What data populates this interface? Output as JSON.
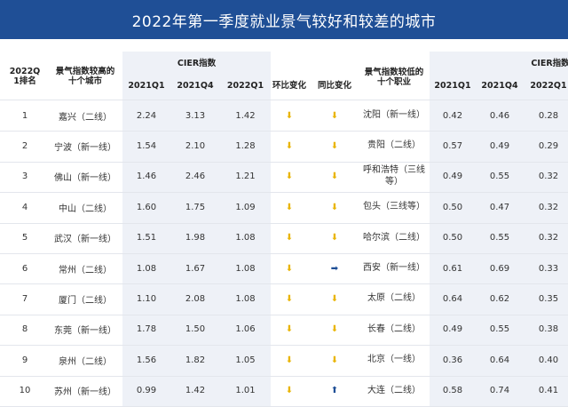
{
  "title": "2022年第一季度就业景气较好和较差的城市",
  "headers": {
    "rank": "2022Q\n1排名",
    "top_cities": "景气指数较高的\n十个城市",
    "cier_left": "CIER指数",
    "q1_2021": "2021Q1",
    "q4_2021": "2021Q4",
    "q1_2022": "2022Q1",
    "qoq": "环比变化",
    "yoy": "同比变化",
    "bottom_cities": "景气指数较低的\n十个职业",
    "cier_right": "CIER指数",
    "q1_2021_r": "2021Q1",
    "q4_2021_r": "2021Q4",
    "q1_2022_r": "2022Q1"
  },
  "rows": [
    {
      "rank": "1",
      "top": "嘉兴（二线）",
      "t1": "2.24",
      "t2": "3.13",
      "t3": "1.42",
      "qoq": "down",
      "yoy": "down",
      "bottom": "沈阳（新一线）",
      "b1": "0.42",
      "b2": "0.46",
      "b3": "0.28"
    },
    {
      "rank": "2",
      "top": "宁波（新一线）",
      "t1": "1.54",
      "t2": "2.10",
      "t3": "1.28",
      "qoq": "down",
      "yoy": "down",
      "bottom": "贵阳（二线）",
      "b1": "0.57",
      "b2": "0.49",
      "b3": "0.29"
    },
    {
      "rank": "3",
      "top": "佛山（新一线）",
      "t1": "1.46",
      "t2": "2.46",
      "t3": "1.21",
      "qoq": "down",
      "yoy": "down",
      "bottom": "呼和浩特（三线\n等）",
      "b1": "0.49",
      "b2": "0.55",
      "b3": "0.32"
    },
    {
      "rank": "4",
      "top": "中山（二线）",
      "t1": "1.60",
      "t2": "1.75",
      "t3": "1.09",
      "qoq": "down",
      "yoy": "down",
      "bottom": "包头（三线等）",
      "b1": "0.50",
      "b2": "0.47",
      "b3": "0.32"
    },
    {
      "rank": "5",
      "top": "武汉（新一线）",
      "t1": "1.51",
      "t2": "1.98",
      "t3": "1.08",
      "qoq": "down",
      "yoy": "down",
      "bottom": "哈尔滨（二线）",
      "b1": "0.50",
      "b2": "0.55",
      "b3": "0.32"
    },
    {
      "rank": "6",
      "top": "常州（二线）",
      "t1": "1.08",
      "t2": "1.67",
      "t3": "1.08",
      "qoq": "down",
      "yoy": "right",
      "bottom": "西安（新一线）",
      "b1": "0.61",
      "b2": "0.69",
      "b3": "0.33"
    },
    {
      "rank": "7",
      "top": "厦门（二线）",
      "t1": "1.10",
      "t2": "2.08",
      "t3": "1.08",
      "qoq": "down",
      "yoy": "down",
      "bottom": "太原（二线）",
      "b1": "0.64",
      "b2": "0.62",
      "b3": "0.35"
    },
    {
      "rank": "8",
      "top": "东莞（新一线）",
      "t1": "1.78",
      "t2": "1.50",
      "t3": "1.06",
      "qoq": "down",
      "yoy": "down",
      "bottom": "长春（二线）",
      "b1": "0.49",
      "b2": "0.55",
      "b3": "0.38"
    },
    {
      "rank": "9",
      "top": "泉州（二线）",
      "t1": "1.56",
      "t2": "1.82",
      "t3": "1.05",
      "qoq": "down",
      "yoy": "down",
      "bottom": "北京（一线）",
      "b1": "0.36",
      "b2": "0.64",
      "b3": "0.40"
    },
    {
      "rank": "10",
      "top": "苏州（新一线）",
      "t1": "0.99",
      "t2": "1.42",
      "t3": "1.01",
      "qoq": "down",
      "yoy": "up",
      "bottom": "大连（二线）",
      "b1": "0.58",
      "b2": "0.74",
      "b3": "0.41"
    }
  ],
  "colors": {
    "banner": "#1f4f96",
    "arrow_down": "#e9b400",
    "arrow_flat_up": "#1f4f96",
    "band": "#eef1f7"
  }
}
